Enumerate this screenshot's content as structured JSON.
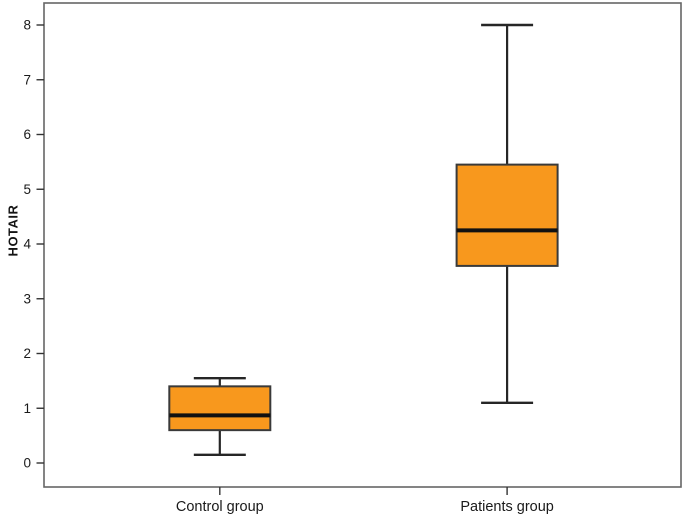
{
  "chart_data": {
    "type": "boxplot",
    "title": "",
    "ylabel": "HOTAIR",
    "xlabel": "",
    "categories": [
      "Control group",
      "Patients group"
    ],
    "yticks": [
      0,
      1,
      2,
      3,
      4,
      5,
      6,
      7,
      8
    ],
    "ylim": [
      -0.44,
      8.4
    ],
    "grid": false,
    "legend": "none",
    "colors": {
      "box_fill": "#F8981D",
      "box_stroke": "#3a3a3a",
      "median": "#111111",
      "whisker": "#262626",
      "frame": "#666666",
      "tick": "#333333",
      "text": "#1a1a1a"
    },
    "series": [
      {
        "category": "Control group",
        "whisker_low": 0.15,
        "q1": 0.6,
        "median": 0.87,
        "q3": 1.4,
        "whisker_high": 1.55
      },
      {
        "category": "Patients group",
        "whisker_low": 1.1,
        "q1": 3.6,
        "median": 4.25,
        "q3": 5.45,
        "whisker_high": 8.0
      }
    ]
  }
}
